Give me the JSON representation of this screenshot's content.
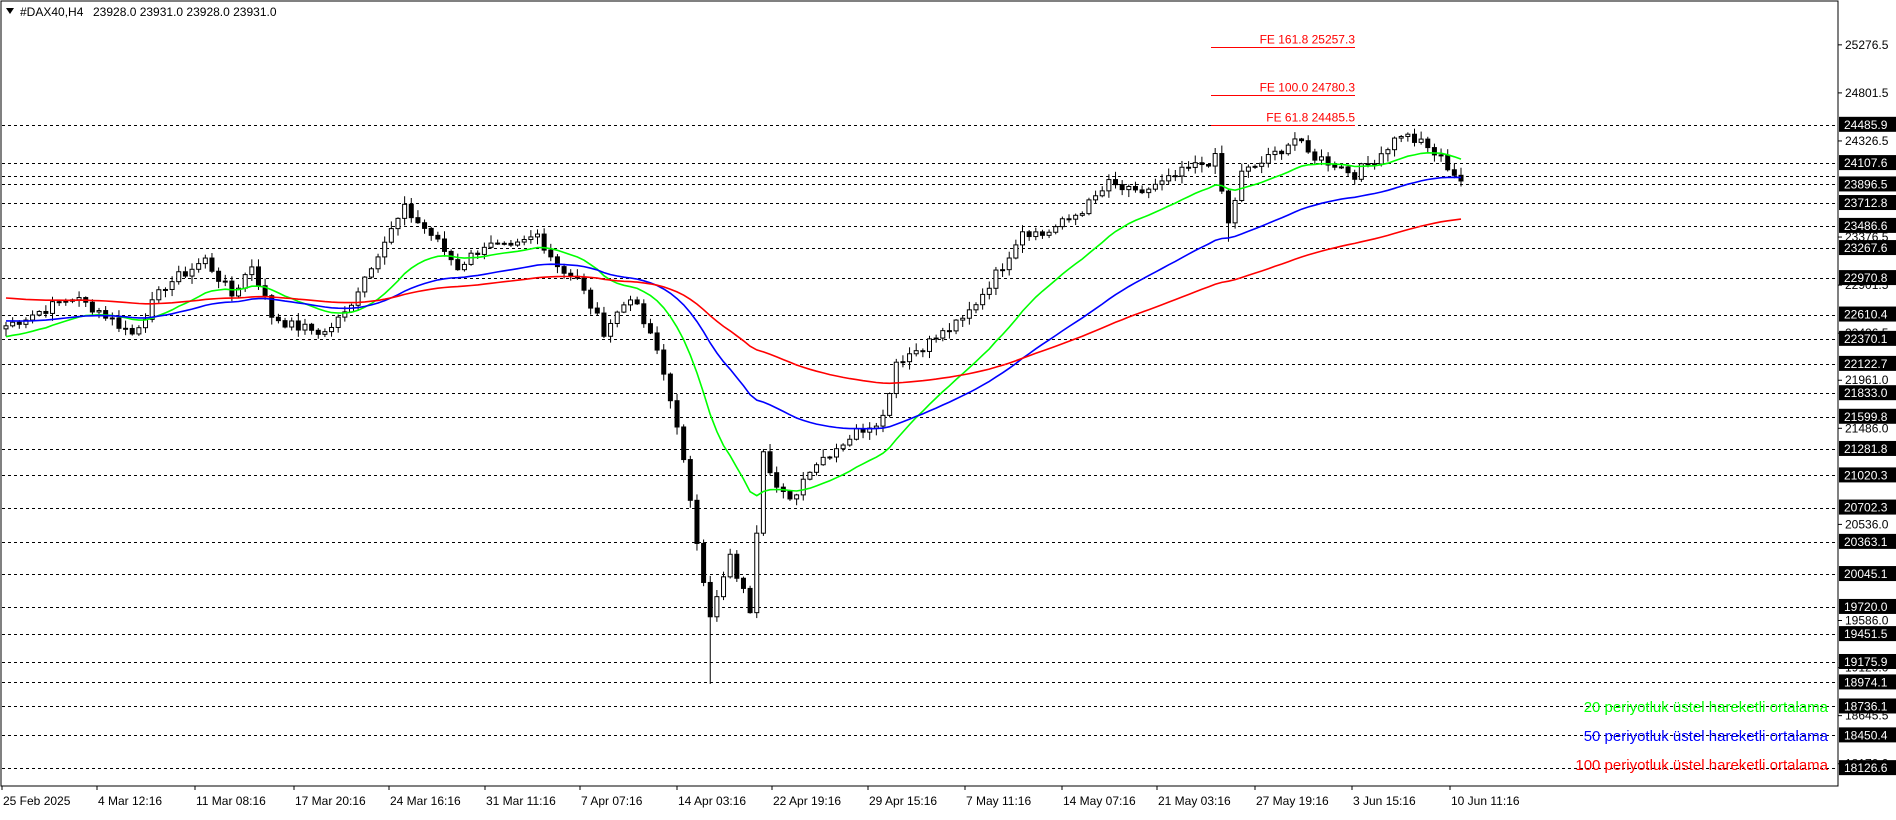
{
  "chart_data": {
    "type": "candlestick",
    "symbol_header": "#DAX40,H4",
    "ohlc_header": "23928.0 23931.0 23928.0 23931.0",
    "ylim": [
      17950,
      25700
    ],
    "x_ticks": [
      "25 Feb 2025",
      "4 Mar 12:16",
      "11 Mar 08:16",
      "17 Mar 20:16",
      "24 Mar 16:16",
      "31 Mar 11:16",
      "7 Apr 07:16",
      "14 Apr 03:16",
      "22 Apr 19:16",
      "29 Apr 15:16",
      "7 May 11:16",
      "14 May 07:16",
      "21 May 03:16",
      "27 May 19:16",
      "3 Jun 15:16",
      "10 Jun 11:16"
    ],
    "y_ticks": [
      "25276.5",
      "24801.5",
      "24326.5",
      "23376.5",
      "22901.5",
      "22426.5",
      "21961.0",
      "21486.0",
      "20536.0",
      "19586.0",
      "19120.0",
      "18645.5",
      "18170.0"
    ],
    "horizontal_levels": [
      24485.9,
      24107.6,
      23981.0,
      23896.5,
      23712.8,
      23486.6,
      23267.6,
      22970.8,
      22610.4,
      22370.1,
      22122.7,
      21833.0,
      21599.8,
      21281.8,
      21020.3,
      20702.3,
      20363.1,
      20045.1,
      19720.0,
      19451.5,
      19175.9,
      18974.1,
      18736.1,
      18450.4,
      18126.6
    ],
    "level_labels": [
      "24485.9",
      "24107.6",
      "23896.5",
      "23712.8",
      "23486.6",
      "23267.6",
      "22970.8",
      "22610.4",
      "22370.1",
      "22122.7",
      "21833.0",
      "21599.8",
      "21281.8",
      "21020.3",
      "20702.3",
      "20363.1",
      "20045.1",
      "19720.0",
      "19451.5",
      "19175.9",
      "18974.1",
      "18736.1",
      "18450.4",
      "18126.6"
    ],
    "fibonacci": [
      {
        "label": "FE 161.8 25257.3",
        "value": 25257.3
      },
      {
        "label": "FE 100.0 24780.3",
        "value": 24780.3
      },
      {
        "label": "FE 61.8 24485.5",
        "value": 24485.5
      }
    ],
    "anchors": [
      [
        0,
        22500
      ],
      [
        10,
        22780
      ],
      [
        14,
        22650
      ],
      [
        19,
        22420
      ],
      [
        24,
        22900
      ],
      [
        30,
        23150
      ],
      [
        34,
        22800
      ],
      [
        37,
        23100
      ],
      [
        40,
        22600
      ],
      [
        43,
        22500
      ],
      [
        48,
        22430
      ],
      [
        51,
        22620
      ],
      [
        56,
        23230
      ],
      [
        60,
        23650
      ],
      [
        64,
        23400
      ],
      [
        68,
        23080
      ],
      [
        72,
        23300
      ],
      [
        76,
        23250
      ],
      [
        80,
        23400
      ],
      [
        83,
        23100
      ],
      [
        86,
        22950
      ],
      [
        90,
        22450
      ],
      [
        94,
        22800
      ],
      [
        98,
        22250
      ],
      [
        100,
        21800
      ],
      [
        103,
        20800
      ],
      [
        106,
        19600
      ],
      [
        109,
        20200
      ],
      [
        112,
        19700
      ],
      [
        114,
        21300
      ],
      [
        116,
        20900
      ],
      [
        118,
        20750
      ],
      [
        121,
        21100
      ],
      [
        125,
        21300
      ],
      [
        128,
        21450
      ],
      [
        132,
        21600
      ],
      [
        134,
        22150
      ],
      [
        138,
        22300
      ],
      [
        144,
        22550
      ],
      [
        150,
        23100
      ],
      [
        153,
        23450
      ],
      [
        156,
        23400
      ],
      [
        160,
        23550
      ],
      [
        163,
        23700
      ],
      [
        166,
        23900
      ],
      [
        170,
        23800
      ],
      [
        174,
        23900
      ],
      [
        178,
        24050
      ],
      [
        182,
        24150
      ],
      [
        184,
        23500
      ],
      [
        186,
        24000
      ],
      [
        190,
        24150
      ],
      [
        194,
        24350
      ],
      [
        196,
        24200
      ],
      [
        200,
        24100
      ],
      [
        203,
        24000
      ],
      [
        206,
        24150
      ],
      [
        210,
        24400
      ],
      [
        213,
        24300
      ],
      [
        216,
        24150
      ],
      [
        219,
        23931
      ]
    ],
    "ema_periods": [
      20,
      50,
      100
    ],
    "series": [
      {
        "name": "20 periyotluk üstel hareketli ortalama",
        "color": "#00ff00"
      },
      {
        "name": "50 periyotluk üstel hareketli ortalama",
        "color": "#0000ff"
      },
      {
        "name": "100 periyotluk üstel hareketli ortalama",
        "color": "#ff0000"
      }
    ],
    "colors": {
      "level_line": "#000000",
      "fe_line": "#ff0000",
      "candle": "#000000",
      "axis": "#000000"
    }
  }
}
